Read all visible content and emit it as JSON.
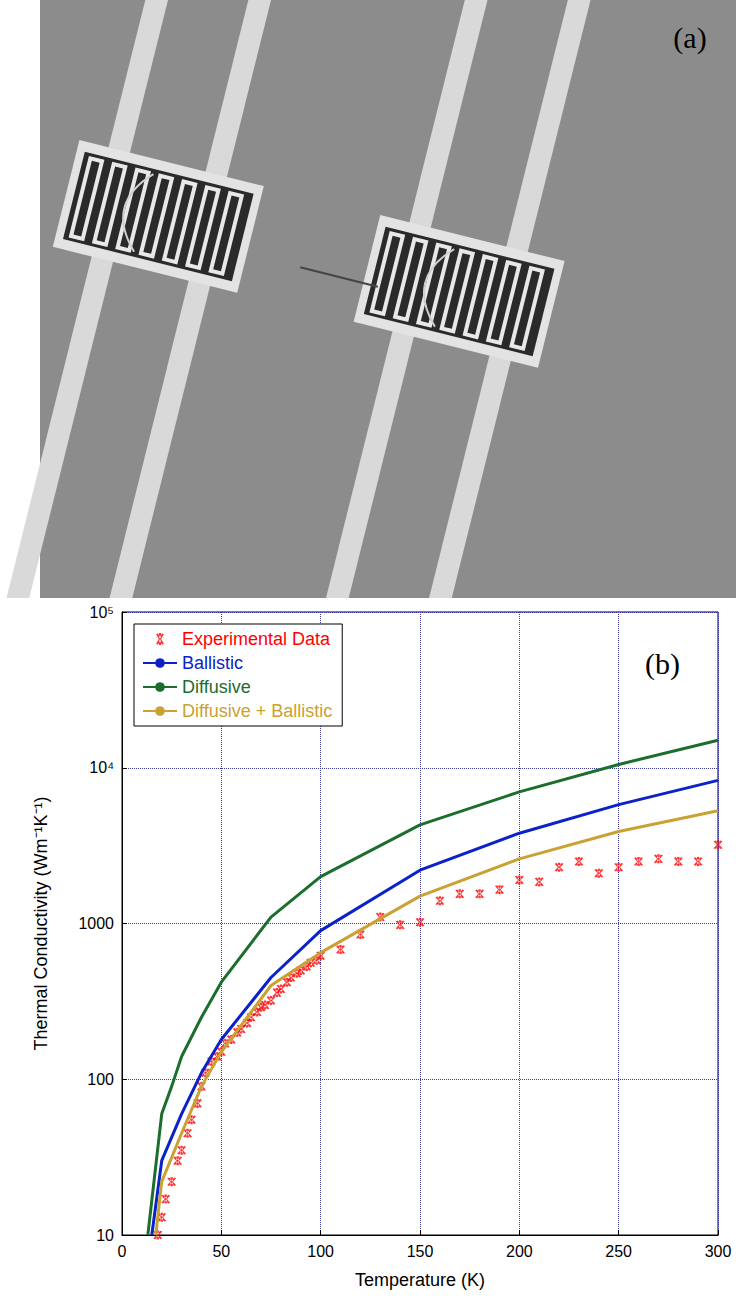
{
  "image_panel": {
    "label": "(a)"
  },
  "chart_data": {
    "type": "line",
    "annotations": [
      "(b)"
    ],
    "x_label": "Temperature (K)",
    "y_label": "Thermal Conductivity (Wm⁻¹K⁻¹)",
    "xlim": [
      0,
      300
    ],
    "xticks": [
      0,
      50,
      100,
      150,
      200,
      250,
      300
    ],
    "ylim": [
      10,
      100000
    ],
    "yticks": [
      10,
      100,
      1000,
      {
        "value": 10000,
        "label": "10⁴"
      },
      {
        "value": 100000,
        "label": "10⁵"
      }
    ],
    "log": "y",
    "grid": true,
    "legend": "upper left",
    "series": [
      {
        "name": "Experimental Data",
        "type": "scatter",
        "marker": "asterisk",
        "color": "#ff0000",
        "x": [
          18,
          20,
          22,
          25,
          28,
          30,
          33,
          35,
          38,
          40,
          42,
          45,
          48,
          50,
          52,
          55,
          58,
          60,
          63,
          65,
          68,
          70,
          72,
          75,
          78,
          80,
          83,
          85,
          88,
          90,
          93,
          95,
          98,
          100,
          110,
          120,
          130,
          140,
          150,
          160,
          170,
          180,
          190,
          200,
          210,
          220,
          230,
          240,
          250,
          260,
          270,
          280,
          290,
          300
        ],
        "values": [
          10,
          13,
          17,
          22,
          30,
          35,
          45,
          55,
          70,
          90,
          110,
          130,
          140,
          150,
          170,
          180,
          200,
          210,
          230,
          250,
          270,
          290,
          300,
          320,
          360,
          380,
          420,
          450,
          480,
          500,
          530,
          560,
          580,
          620,
          680,
          850,
          1100,
          980,
          1020,
          1400,
          1550,
          1550,
          1650,
          1900,
          1850,
          2300,
          2500,
          2100,
          2300,
          2500,
          2600,
          2500,
          2500,
          3200
        ]
      },
      {
        "name": "Ballistic",
        "type": "line",
        "line_style": "solid",
        "color": "#0a22c8",
        "x": [
          15,
          20,
          30,
          40,
          50,
          75,
          100,
          150,
          200,
          250,
          300
        ],
        "values": [
          10,
          30,
          60,
          110,
          180,
          450,
          900,
          2200,
          3800,
          5800,
          8300
        ]
      },
      {
        "name": "Diffusive",
        "type": "line",
        "line_style": "solid",
        "color": "#1b6e2c",
        "x": [
          13,
          20,
          25,
          30,
          40,
          50,
          75,
          100,
          150,
          200,
          250,
          300
        ],
        "values": [
          10,
          60,
          90,
          140,
          250,
          420,
          1100,
          2000,
          4300,
          7000,
          10500,
          15000
        ]
      },
      {
        "name": "Diffusive + Ballistic",
        "type": "line",
        "line_style": "solid",
        "color": "#c9a233",
        "x": [
          17,
          20,
          30,
          40,
          50,
          75,
          100,
          150,
          200,
          250,
          300
        ],
        "values": [
          10,
          22,
          45,
          90,
          150,
          400,
          650,
          1500,
          2600,
          3900,
          5300
        ]
      }
    ]
  }
}
